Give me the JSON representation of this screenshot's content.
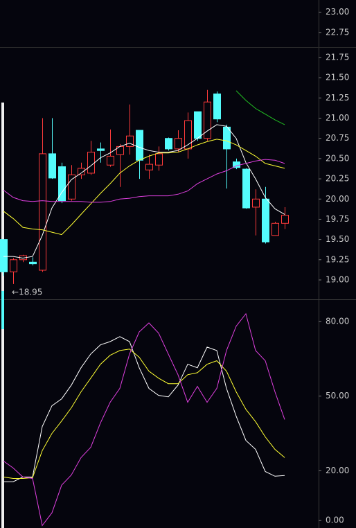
{
  "chart_data": [
    {
      "type": "candlestick",
      "ylim": [
        22.57,
        23.15
      ],
      "yticks": [
        {
          "value": 23,
          "label": "23.00"
        },
        22.75
      ]
    },
    {
      "type": "candlestick",
      "open": [
        19.5,
        19.1,
        19.25,
        19.22,
        19.12,
        20.56,
        20.4,
        20.0,
        20.3,
        20.32,
        20.62,
        20.42,
        20.55,
        20.65,
        20.85,
        20.36,
        20.42,
        20.75,
        20.62,
        20.62,
        21.08,
        20.75,
        21.3,
        20.89,
        20.46,
        20.37,
        19.9,
        20.0,
        19.55,
        19.7
      ],
      "high": [
        19.5,
        19.27,
        19.31,
        19.28,
        21.0,
        21.0,
        20.45,
        20.42,
        20.45,
        20.72,
        20.7,
        20.86,
        20.68,
        21.17,
        20.85,
        20.55,
        20.65,
        20.76,
        20.85,
        21.07,
        21.08,
        21.35,
        21.33,
        20.92,
        20.5,
        20.38,
        20.12,
        20.15,
        19.72,
        19.9
      ],
      "low": [
        19.05,
        18.95,
        19.22,
        19.18,
        19.1,
        20.25,
        19.95,
        19.98,
        20.25,
        20.3,
        20.45,
        20.4,
        20.15,
        20.55,
        20.25,
        20.25,
        20.35,
        20.6,
        20.58,
        20.5,
        20.72,
        20.72,
        20.95,
        20.13,
        20.37,
        19.88,
        19.55,
        19.45,
        19.55,
        19.63
      ],
      "close": [
        19.1,
        19.25,
        19.3,
        19.2,
        20.56,
        20.26,
        19.98,
        20.3,
        20.38,
        20.58,
        20.6,
        20.53,
        20.65,
        20.78,
        20.48,
        20.43,
        20.56,
        20.62,
        20.75,
        20.97,
        20.75,
        21.2,
        20.99,
        20.62,
        20.39,
        19.89,
        20.0,
        19.47,
        19.7,
        19.8
      ],
      "up_color": "#ff3b3b",
      "down_color": "#54fcfc",
      "series": [
        {
          "color": "#ffffff",
          "values": [
            19.29,
            19.29,
            19.27,
            19.29,
            19.55,
            19.89,
            20.08,
            20.24,
            20.32,
            20.41,
            20.51,
            20.57,
            20.65,
            20.69,
            20.64,
            20.6,
            20.58,
            20.58,
            20.6,
            20.67,
            20.75,
            20.84,
            20.92,
            20.9,
            20.75,
            20.45,
            20.25,
            20.02,
            19.88,
            19.81
          ]
        },
        {
          "color": "#ffff33",
          "values": [
            19.85,
            19.76,
            19.65,
            19.63,
            19.62,
            19.59,
            19.56,
            19.68,
            19.81,
            19.94,
            20.07,
            20.19,
            20.32,
            20.41,
            20.48,
            20.53,
            20.57,
            20.57,
            20.58,
            20.62,
            20.67,
            20.71,
            20.74,
            20.72,
            20.67,
            20.6,
            20.53,
            20.44,
            20.41,
            20.38
          ]
        },
        {
          "color": "#e040e0",
          "values": [
            20.11,
            20.02,
            19.98,
            19.97,
            19.98,
            19.97,
            19.97,
            19.97,
            19.97,
            19.96,
            19.96,
            19.97,
            20.0,
            20.01,
            20.03,
            20.04,
            20.04,
            20.04,
            20.06,
            20.1,
            20.19,
            20.25,
            20.31,
            20.35,
            20.41,
            20.44,
            20.47,
            20.49,
            20.48,
            20.44
          ]
        },
        {
          "color": "#22c022",
          "values": [
            null,
            null,
            null,
            null,
            null,
            null,
            null,
            null,
            null,
            null,
            null,
            null,
            null,
            null,
            null,
            null,
            null,
            null,
            null,
            null,
            null,
            null,
            null,
            null,
            21.34,
            21.22,
            21.12,
            21.05,
            20.98,
            20.92
          ]
        }
      ],
      "annotation": "←18.95",
      "ylim": [
        18.76,
        21.87
      ],
      "yticks": [
        21.75,
        {
          "value": 21.5,
          "label": "21.50"
        },
        21.25,
        {
          "value": 21,
          "label": "21.00"
        },
        20.75,
        {
          "value": 20.5,
          "label": "20.50"
        },
        20.25,
        {
          "value": 20,
          "label": "20.00"
        },
        19.75,
        {
          "value": 19.5,
          "label": "19.50"
        },
        19.25,
        {
          "value": 19,
          "label": "19.00"
        }
      ]
    },
    {
      "type": "line",
      "series": [
        {
          "color": "#ffffff",
          "values": [
            15.6,
            15.6,
            17.5,
            17.5,
            37.8,
            46.1,
            48.9,
            54.4,
            61.4,
            66.9,
            70.6,
            71.9,
            73.9,
            71.9,
            61.4,
            53.1,
            50.3,
            49.7,
            54.4,
            62.8,
            61.4,
            69.7,
            68.3,
            53.1,
            41.9,
            32.2,
            28.6,
            19.7,
            17.8,
            18.1
          ]
        },
        {
          "color": "#ffff33",
          "values": [
            17.5,
            16.9,
            16.9,
            17.2,
            28.1,
            35.0,
            40.0,
            45.3,
            51.7,
            57.2,
            62.8,
            66.4,
            68.3,
            68.9,
            65.6,
            60.0,
            57.2,
            55.0,
            55.0,
            58.6,
            59.4,
            62.8,
            64.2,
            60.0,
            51.7,
            44.7,
            39.7,
            33.6,
            28.6,
            25.3
          ]
        },
        {
          "color": "#e040e0",
          "values": [
            23.9,
            21.1,
            17.5,
            16.9,
            -2.0,
            3.1,
            14.2,
            18.3,
            25.3,
            29.4,
            39.2,
            47.5,
            53.1,
            66.9,
            75.8,
            79.4,
            75.3,
            66.9,
            58.6,
            47.5,
            53.9,
            47.5,
            53.1,
            68.3,
            78.1,
            83.1,
            68.3,
            64.2,
            51.7,
            40.6
          ]
        }
      ],
      "ylim": [
        -3,
        88.6
      ],
      "yticks": [
        {
          "value": 80,
          "label": "80.00"
        },
        {
          "value": 50,
          "label": "50.00"
        },
        {
          "value": 20,
          "label": "20.00"
        },
        {
          "value": 0,
          "label": "0.00"
        }
      ]
    }
  ]
}
